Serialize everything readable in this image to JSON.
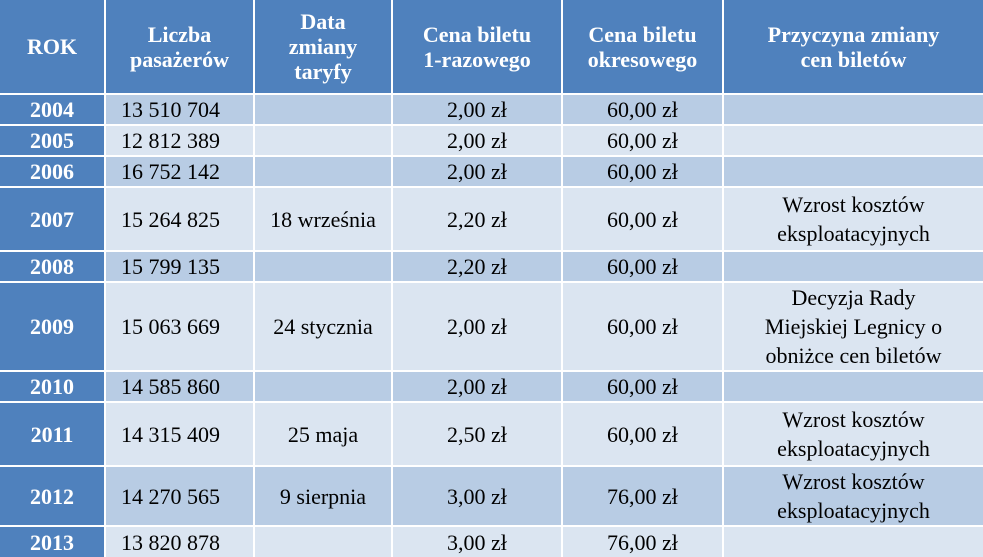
{
  "table": {
    "header": [
      [
        "ROK"
      ],
      [
        "Liczba",
        "pasażerów"
      ],
      [
        "Data",
        "zmiany",
        "taryfy"
      ],
      [
        "Cena biletu",
        "1-razowego"
      ],
      [
        "Cena biletu",
        "okresowego"
      ],
      [
        "Przyczyna zmiany",
        "cen biletów"
      ]
    ],
    "rows": [
      [
        "2004",
        "13 510 704",
        null,
        "2,00 zł",
        "60,00 zł",
        null
      ],
      [
        "2005",
        "12 812 389",
        null,
        "2,00 zł",
        "60,00 zł",
        null
      ],
      [
        "2006",
        "16 752 142",
        null,
        "2,00 zł",
        "60,00 zł",
        null
      ],
      [
        "2007",
        "15 264 825",
        "18 września",
        "2,20 zł",
        "60,00 zł",
        [
          "Wzrost kosztów",
          "eksploatacyjnych"
        ]
      ],
      [
        "2008",
        "15 799 135",
        null,
        "2,20 zł",
        "60,00 zł",
        null
      ],
      [
        "2009",
        "15 063 669",
        "24 stycznia",
        "2,00 zł",
        "60,00 zł",
        [
          "Decyzja Rady",
          "Miejskiej Legnicy o",
          "obniżce cen biletów"
        ]
      ],
      [
        "2010",
        "14 585 860",
        null,
        "2,00 zł",
        "60,00 zł",
        null
      ],
      [
        "2011",
        "14 315 409",
        "25 maja",
        "2,50 zł",
        "60,00 zł",
        [
          "Wzrost kosztów",
          "eksploatacyjnych"
        ]
      ],
      [
        "2012",
        "14 270 565",
        "9 sierpnia",
        "3,00 zł",
        "76,00 zł",
        [
          "Wzrost kosztów",
          "eksploatacyjnych"
        ]
      ],
      [
        "2013",
        "13 820 878",
        null,
        "3,00 zł",
        "76,00 zł",
        null
      ]
    ]
  }
}
